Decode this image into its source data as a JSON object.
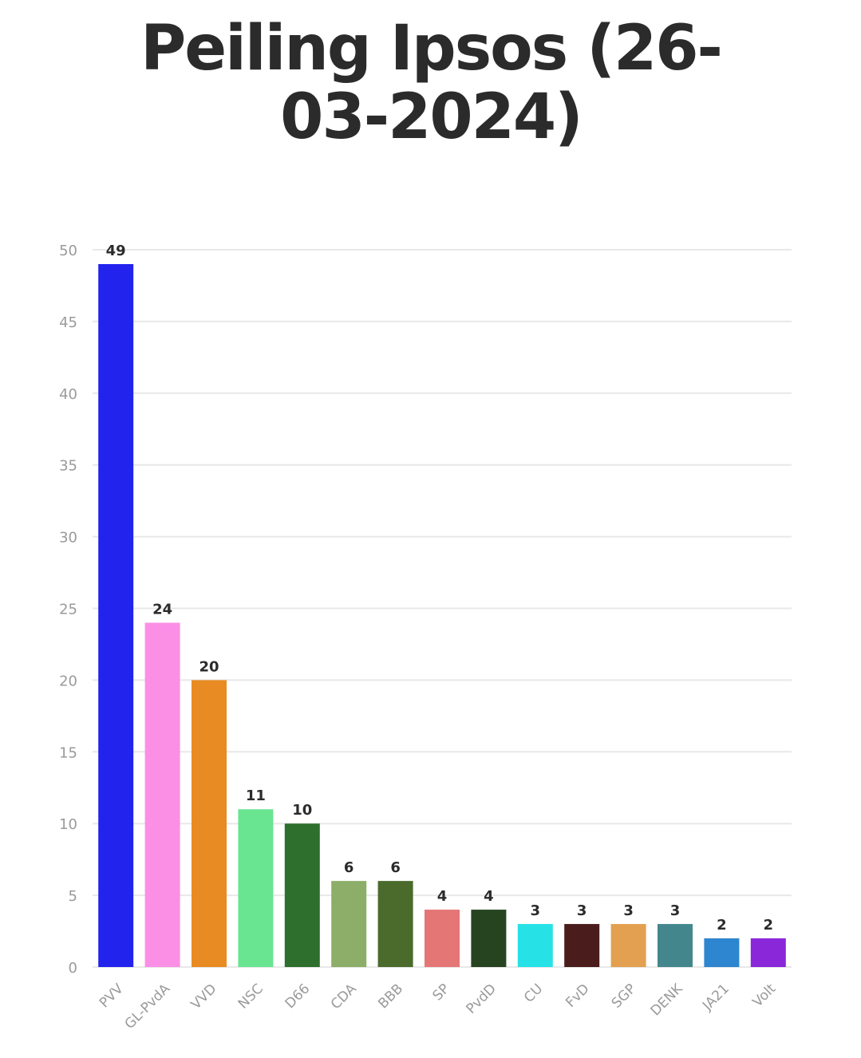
{
  "chart_data": {
    "type": "bar",
    "title": "Peiling Ipsos (26-03-2024)",
    "xlabel": "",
    "ylabel": "",
    "ylim": [
      0,
      50
    ],
    "yticks": [
      0,
      5,
      10,
      15,
      20,
      25,
      30,
      35,
      40,
      45,
      50
    ],
    "grid": true,
    "categories": [
      "PVV",
      "GL-PvdA",
      "VVD",
      "NSC",
      "D66",
      "CDA",
      "BBB",
      "SP",
      "PvdD",
      "CU",
      "FvD",
      "SGP",
      "DENK",
      "JA21",
      "Volt"
    ],
    "values": [
      49,
      24,
      20,
      11,
      10,
      6,
      6,
      4,
      4,
      3,
      3,
      3,
      3,
      2,
      2
    ],
    "colors": [
      "#2323ee",
      "#fb8fe6",
      "#e88b23",
      "#69e592",
      "#2f6f2e",
      "#8cae68",
      "#4a6b2c",
      "#e57676",
      "#264420",
      "#26e2e6",
      "#4a1c1c",
      "#e2a050",
      "#43878d",
      "#2d86cf",
      "#8a27d9"
    ]
  }
}
